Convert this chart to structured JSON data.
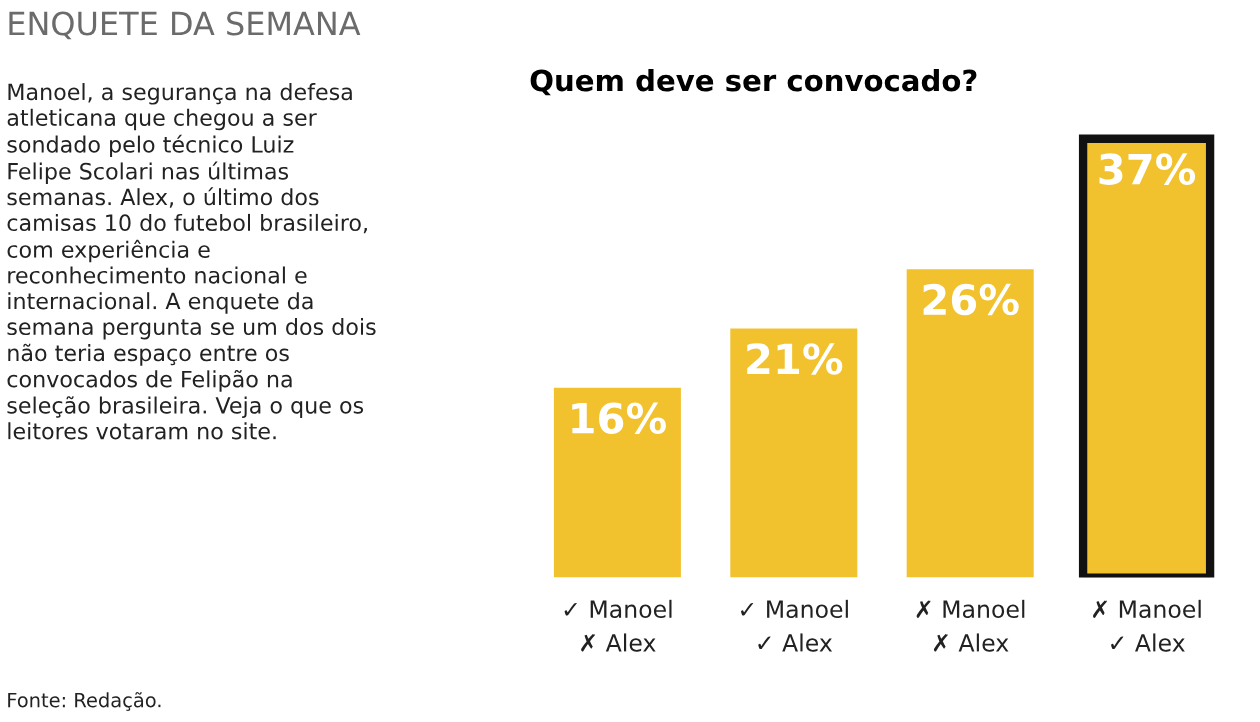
{
  "chart_data": {
    "type": "bar",
    "title": "Quem deve ser convocado?",
    "categories": [
      "✓ Manoel\n✗ Alex",
      "✓ Manoel\n✓ Alex",
      "✗ Manoel\n✗ Alex",
      "✗ Manoel\n✓ Alex"
    ],
    "values": [
      16,
      21,
      26,
      37
    ],
    "value_labels": [
      "16%",
      "21%",
      "26%",
      "37%"
    ],
    "colors": [
      "#f2c12e",
      "#f2c12e",
      "#f2c12e",
      "#f2c12e"
    ],
    "annotations": [
      "ENQUETE DA SEMANA",
      "Manoel, a segurança na defesa\natleticana que chegou a ser\nsondado pelo técnico Luiz\nFelipe Scolari nas últimas\nsemanas. Alex, o último dos\ncamisas 10 do futebol brasileiro,\ncom experiência e\nreconhecimento nacional e\ninternacional. A enquete da\nsemana pergunta se um dos dois\nnão teria espaço entre os\nconvocados de Felipão na\nseleção brasileira. Veja o que os\nleitores votaram no site.",
      "Fonte: Redação."
    ]
  }
}
